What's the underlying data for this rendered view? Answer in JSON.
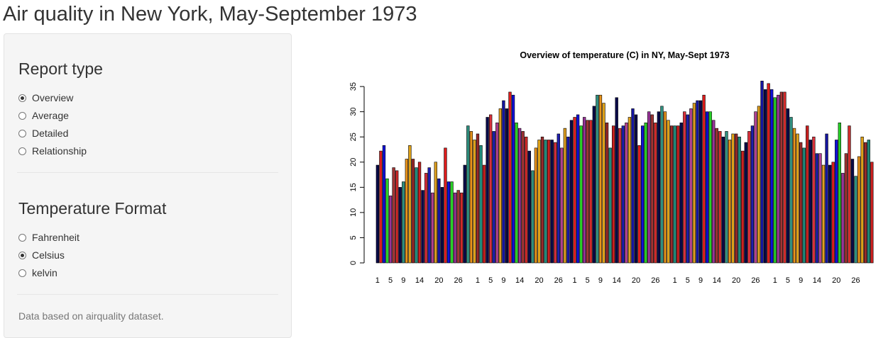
{
  "app": {
    "title": "Air quality in New York, May-September 1973"
  },
  "sidebar": {
    "report_type": {
      "heading": "Report type",
      "options": [
        "Overview",
        "Average",
        "Detailed",
        "Relationship"
      ],
      "selected": "Overview"
    },
    "temperature_format": {
      "heading": "Temperature Format",
      "options": [
        "Fahrenheit",
        "Celsius",
        "kelvin"
      ],
      "selected": "Celsius"
    },
    "footnote": "Data based on airquality dataset."
  },
  "chart_data": {
    "type": "bar",
    "title": "Overview of temperature (C) in NY, May-Sept 1973",
    "xlabel": "",
    "ylabel": "",
    "ylim": [
      0,
      36
    ],
    "yticks": [
      0,
      5,
      10,
      15,
      20,
      25,
      30,
      35
    ],
    "xtick_labels": [
      "1",
      "5",
      "9",
      "14",
      "20",
      "26",
      "1",
      "5",
      "9",
      "14",
      "20",
      "26",
      "1",
      "5",
      "9",
      "14",
      "20",
      "26",
      "1",
      "5",
      "9",
      "14",
      "20",
      "26",
      "1",
      "5",
      "9",
      "14",
      "20",
      "26"
    ],
    "xtick_bar_index": [
      0,
      4,
      8,
      13,
      19,
      25,
      31,
      35,
      39,
      44,
      50,
      56,
      61,
      65,
      69,
      74,
      80,
      86,
      92,
      96,
      100,
      105,
      111,
      117,
      123,
      127,
      131,
      136,
      142,
      148
    ],
    "colors": [
      "#0a0a4a",
      "#dd1c1c",
      "#1010dd",
      "#27d027",
      "#993399",
      "#a23434",
      "#d22a2a",
      "#0a0a4a",
      "#2f8f7f",
      "#e8931c",
      "#dda017",
      "#9a2a2a",
      "#1e8a7a",
      "#cc2020",
      "#0a0a4a",
      "#d9303c",
      "#1f1fb0",
      "#b04090",
      "#e0a020",
      "#1515a0"
    ],
    "values": [
      19.4,
      22.2,
      23.3,
      16.7,
      13.3,
      18.9,
      18.3,
      15.0,
      16.1,
      20.6,
      23.3,
      20.6,
      18.9,
      20.0,
      14.4,
      17.8,
      18.9,
      13.9,
      20.0,
      16.7,
      15.0,
      22.8,
      16.1,
      16.1,
      13.9,
      14.4,
      13.9,
      19.4,
      27.2,
      26.1,
      24.4,
      25.6,
      23.3,
      19.4,
      28.9,
      29.4,
      26.1,
      27.8,
      30.6,
      32.2,
      30.6,
      33.9,
      33.3,
      27.8,
      26.7,
      26.1,
      25.0,
      22.2,
      18.3,
      22.8,
      24.4,
      25.0,
      24.4,
      24.4,
      24.4,
      23.9,
      25.6,
      22.8,
      26.7,
      25.0,
      28.3,
      28.9,
      29.4,
      27.2,
      28.9,
      28.3,
      28.3,
      31.1,
      33.3,
      33.3,
      31.7,
      27.8,
      22.8,
      27.2,
      32.8,
      26.7,
      27.2,
      27.8,
      28.9,
      30.6,
      29.4,
      23.3,
      27.2,
      27.8,
      30.0,
      29.4,
      27.8,
      30.0,
      31.1,
      30.0,
      28.3,
      27.2,
      27.2,
      27.2,
      27.8,
      30.0,
      29.4,
      30.6,
      31.7,
      32.2,
      32.2,
      33.3,
      30.0,
      30.0,
      28.3,
      26.7,
      26.1,
      25.0,
      26.1,
      24.4,
      25.6,
      25.6,
      25.0,
      22.2,
      23.9,
      26.1,
      27.2,
      30.0,
      31.1,
      36.1,
      34.4,
      35.6,
      34.4,
      32.8,
      33.3,
      33.9,
      33.9,
      30.6,
      28.9,
      26.7,
      25.6,
      23.9,
      22.8,
      27.2,
      24.4,
      25.0,
      21.7,
      21.7,
      19.4,
      25.6,
      19.4,
      20.0,
      24.4,
      27.8,
      17.8,
      21.7,
      27.2,
      20.6,
      17.2,
      21.1,
      25.0,
      23.9,
      24.4,
      20.0
    ]
  }
}
